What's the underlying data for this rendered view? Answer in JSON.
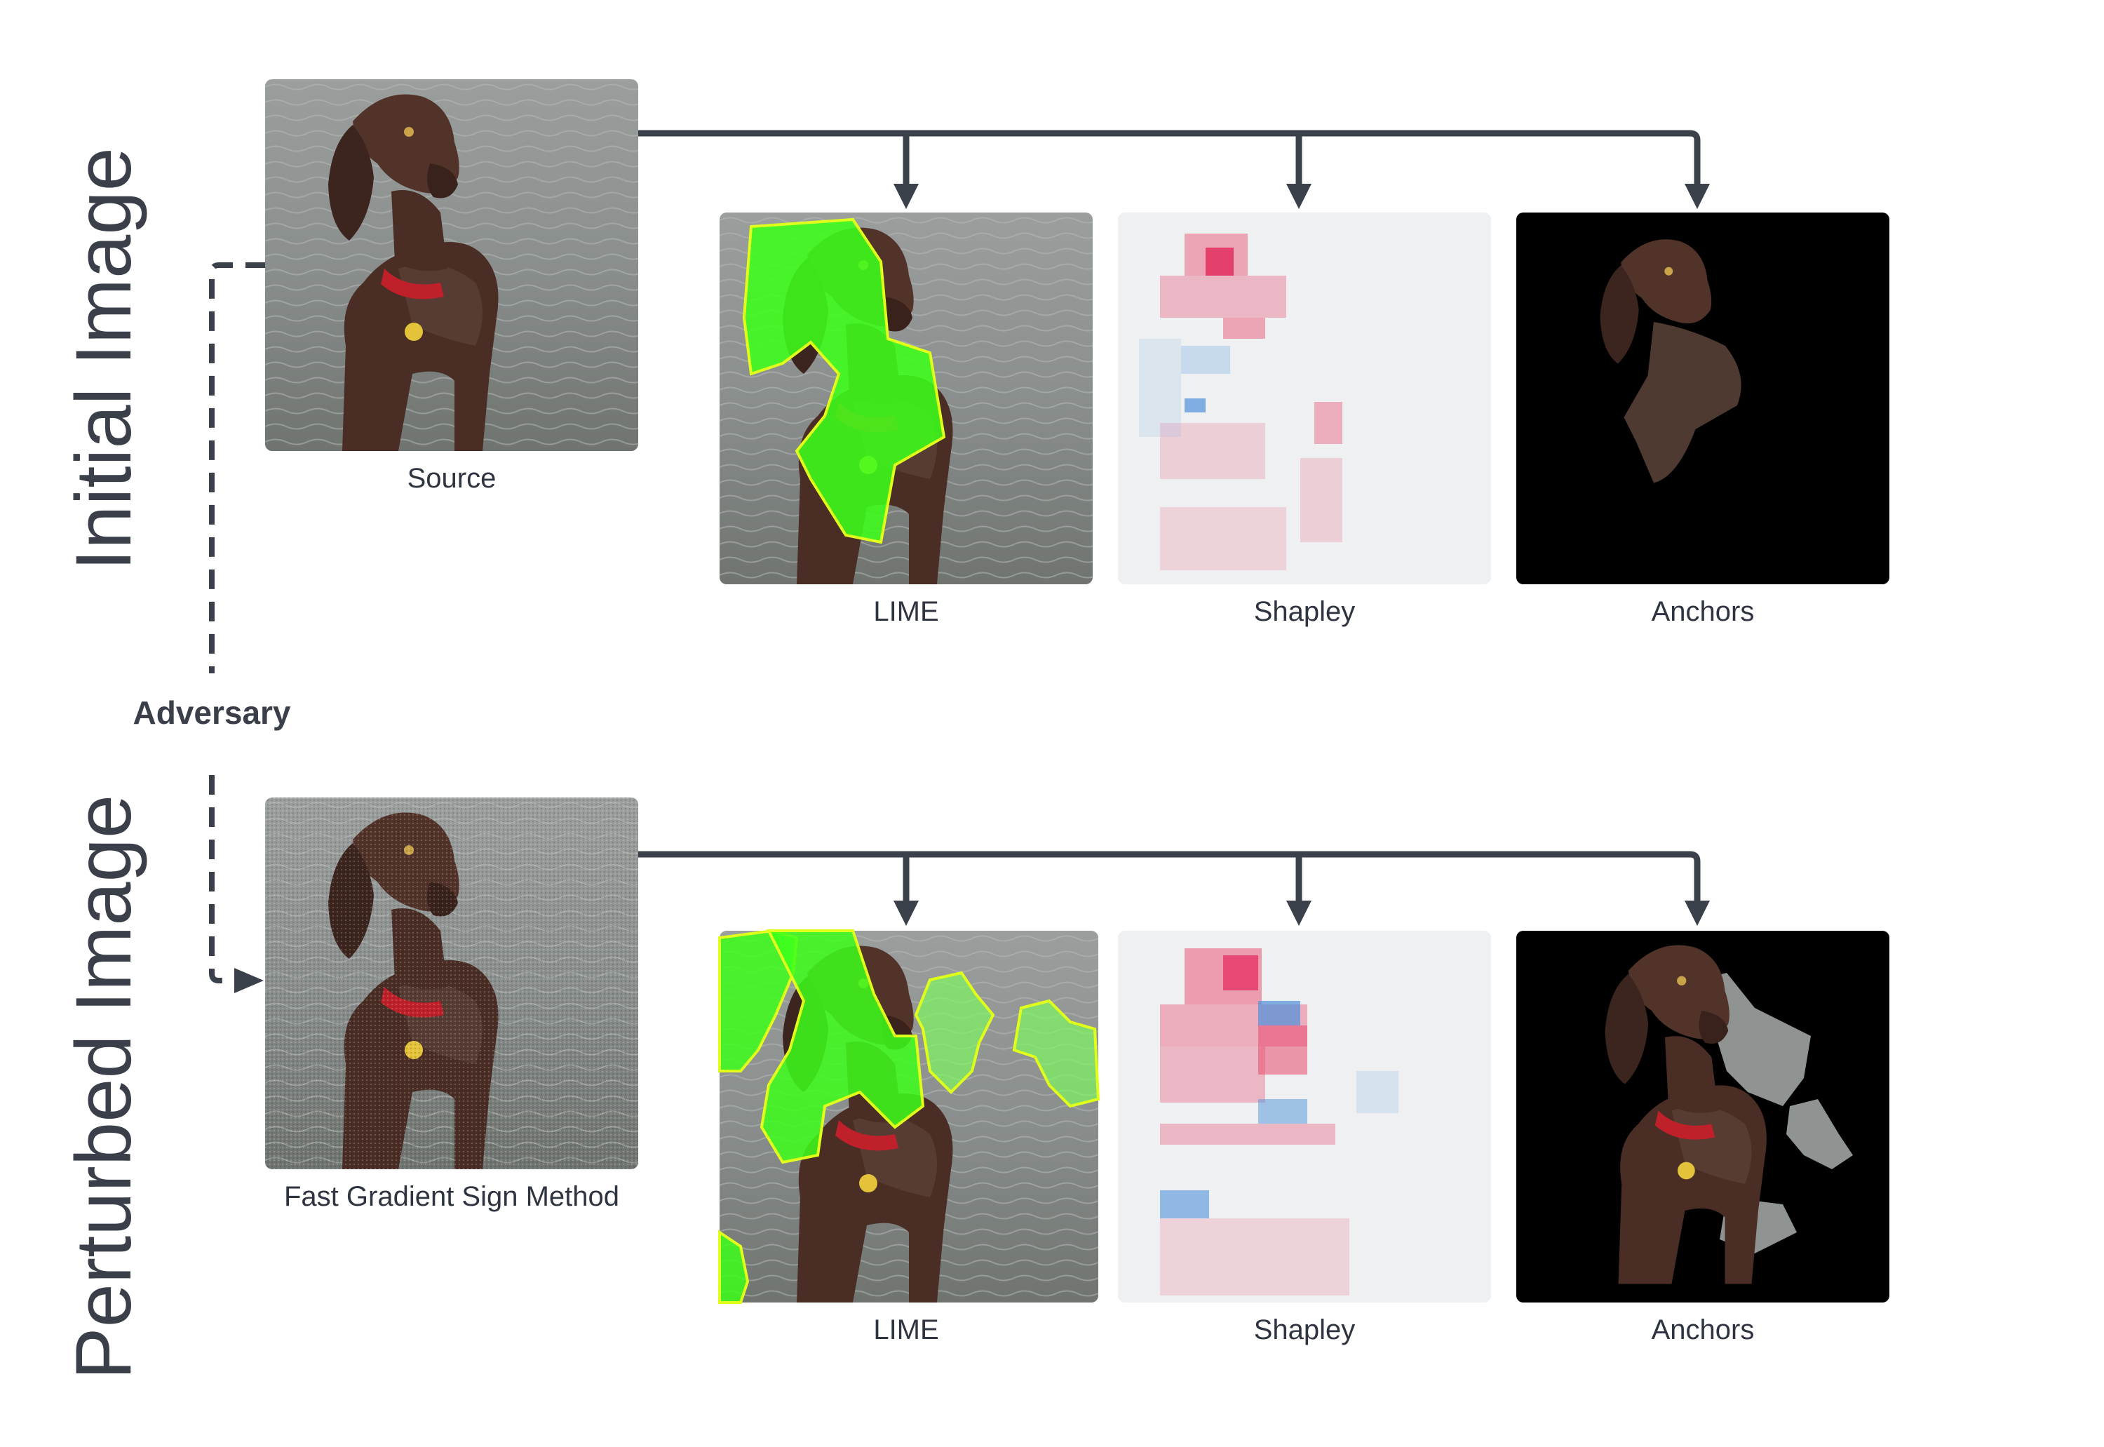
{
  "rows": {
    "initial": {
      "title": "Initial Image",
      "source_caption": "Source",
      "panels": [
        "LIME",
        "Shapley",
        "Anchors"
      ]
    },
    "perturbed": {
      "title": "Perturbed Image",
      "source_caption": "Fast Gradient Sign Method",
      "panels": [
        "LIME",
        "Shapley",
        "Anchors"
      ]
    }
  },
  "adversary_label": "Adversary",
  "colors": {
    "connector": "#3b414b",
    "text": "#2e3440",
    "lime_overlay": "#3dff1a",
    "shap_positive": "#e8385e",
    "shap_negative": "#3f88d8",
    "anchors_background": "#000000",
    "water": "#8e9290",
    "dog": "#4a2e25"
  }
}
